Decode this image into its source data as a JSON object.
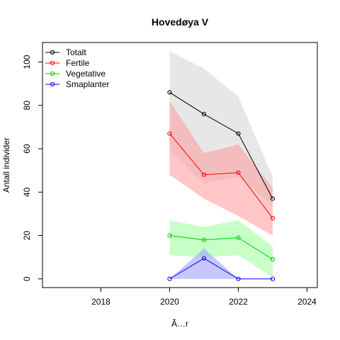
{
  "chart_data": {
    "type": "line",
    "title": "Hovedøya V",
    "xlabel": "Ã…r",
    "ylabel": "Antall individer",
    "xlim": [
      2016.3,
      2024.3
    ],
    "ylim": [
      -4,
      109
    ],
    "x_ticks": [
      2018,
      2020,
      2022,
      2024
    ],
    "y_ticks": [
      0,
      20,
      40,
      60,
      80,
      100
    ],
    "grid": false,
    "legend_position": "top-left",
    "x": [
      2020,
      2021,
      2022,
      2023
    ],
    "series": [
      {
        "name": "Totalt",
        "color": "#000000",
        "band_color": "#d3d3d3",
        "values": [
          86,
          76,
          67,
          37
        ],
        "lower": [
          59,
          44,
          47,
          34
        ],
        "upper": [
          105,
          97,
          84,
          47
        ]
      },
      {
        "name": "Fertile",
        "color": "#ff0000",
        "band_color": "#ff9999",
        "values": [
          67,
          48,
          49,
          28
        ],
        "lower": [
          48,
          37,
          29,
          20
        ],
        "upper": [
          82,
          58,
          62,
          42
        ]
      },
      {
        "name": "Vegetative",
        "color": "#00cc00",
        "band_color": "#99ff99",
        "values": [
          20,
          18,
          19,
          9
        ],
        "lower": [
          11,
          10,
          11,
          1
        ],
        "upper": [
          27,
          24,
          27,
          15
        ]
      },
      {
        "name": "Smaplanter",
        "color": "#0000ff",
        "band_color": "#9999ff",
        "values": [
          0,
          9.5,
          0,
          0
        ],
        "lower": [
          0,
          0,
          0,
          0
        ],
        "upper": [
          0,
          14,
          0,
          0
        ]
      }
    ]
  }
}
